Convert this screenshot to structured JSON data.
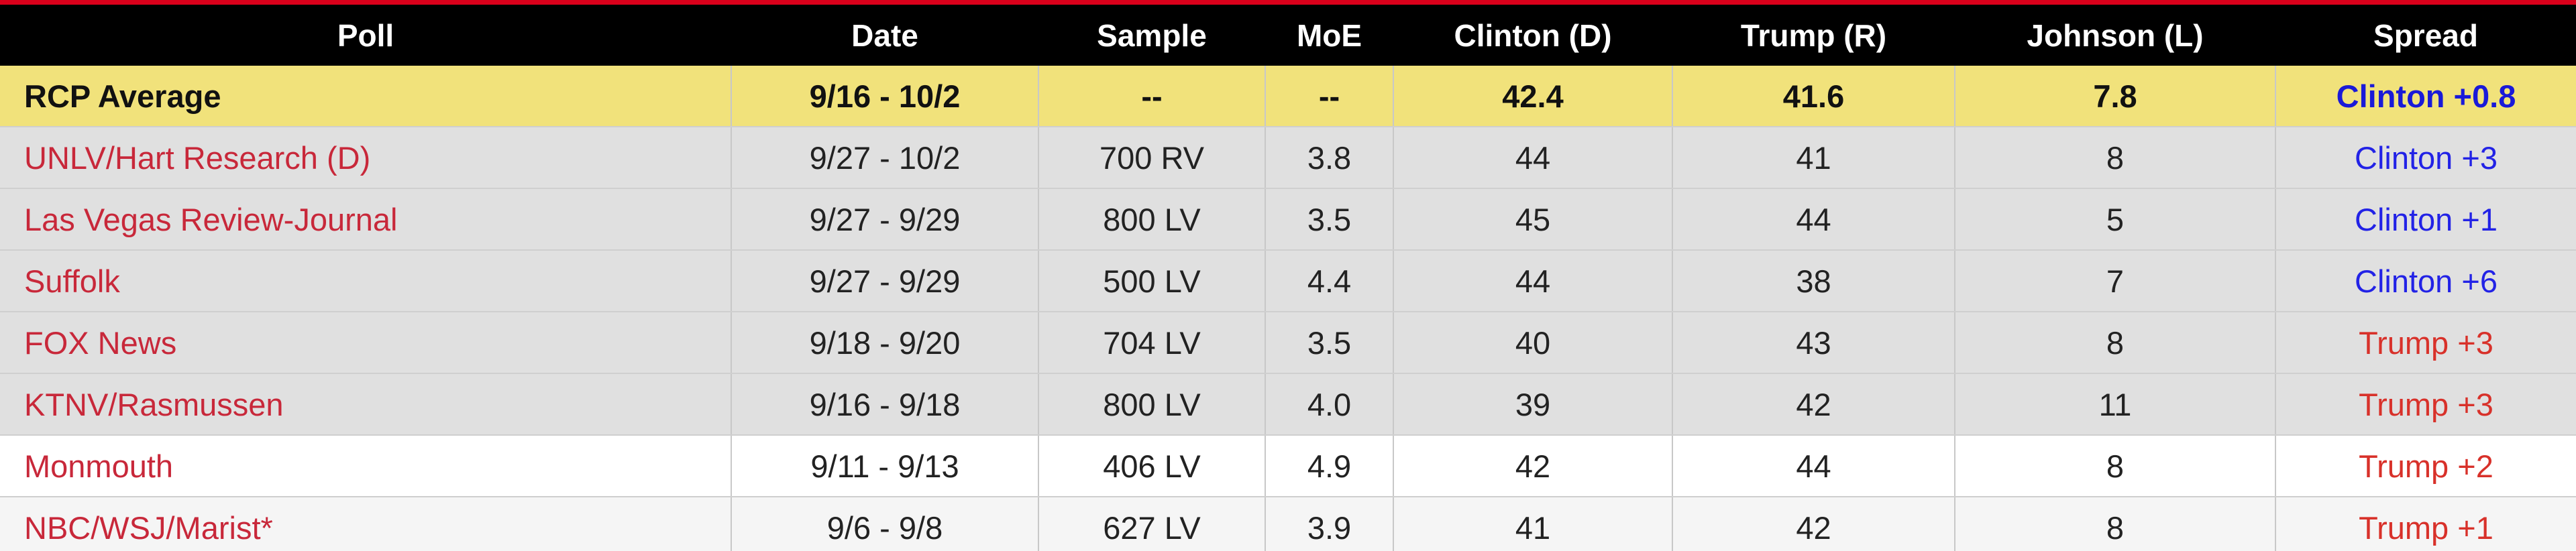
{
  "table": {
    "columns": [
      "Poll",
      "Date",
      "Sample",
      "MoE",
      "Clinton (D)",
      "Trump (R)",
      "Johnson (L)",
      "Spread"
    ],
    "rows": [
      [
        "RCP Average",
        "9/16 - 10/2",
        "--",
        "--",
        "42.4",
        "41.6",
        "7.8",
        "Clinton +0.8"
      ],
      [
        "UNLV/Hart Research (D)",
        "9/27 - 10/2",
        "700 RV",
        "3.8",
        "44",
        "41",
        "8",
        "Clinton +3"
      ],
      [
        "Las Vegas Review-Journal",
        "9/27 - 9/29",
        "800 LV",
        "3.5",
        "45",
        "44",
        "5",
        "Clinton +1"
      ],
      [
        "Suffolk",
        "9/27 - 9/29",
        "500 LV",
        "4.4",
        "44",
        "38",
        "7",
        "Clinton +6"
      ],
      [
        "FOX News",
        "9/18 - 9/20",
        "704 LV",
        "3.5",
        "40",
        "43",
        "8",
        "Trump +3"
      ],
      [
        "KTNV/Rasmussen",
        "9/16 - 9/18",
        "800 LV",
        "4.0",
        "39",
        "42",
        "11",
        "Trump +3"
      ],
      [
        "Monmouth",
        "9/11 - 9/13",
        "406 LV",
        "4.9",
        "42",
        "44",
        "8",
        "Trump +2"
      ],
      [
        "NBC/WSJ/Marist*",
        "9/6 - 9/8",
        "627 LV",
        "3.9",
        "41",
        "42",
        "8",
        "Trump +1"
      ]
    ]
  }
}
